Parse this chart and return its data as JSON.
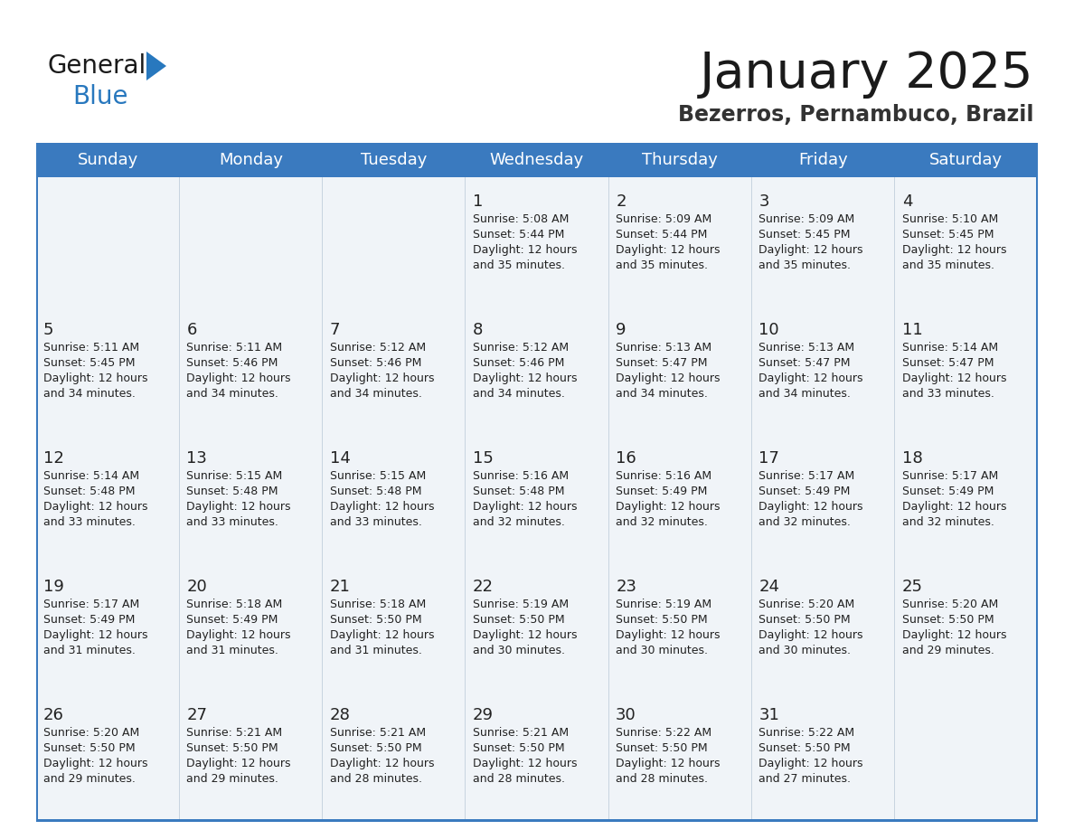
{
  "title": "January 2025",
  "subtitle": "Bezerros, Pernambuco, Brazil",
  "days_of_week": [
    "Sunday",
    "Monday",
    "Tuesday",
    "Wednesday",
    "Thursday",
    "Friday",
    "Saturday"
  ],
  "header_bg": "#3a7abf",
  "header_text": "#ffffff",
  "cell_bg": "#f0f4f8",
  "separator_color": "#3a7abf",
  "text_color": "#222222",
  "title_color": "#1a1a1a",
  "subtitle_color": "#333333",
  "logo_black": "#1a1a1a",
  "logo_blue": "#2878be",
  "calendar": [
    [
      {
        "day": null,
        "text": ""
      },
      {
        "day": null,
        "text": ""
      },
      {
        "day": null,
        "text": ""
      },
      {
        "day": 1,
        "sunrise": "5:08 AM",
        "sunset": "5:44 PM",
        "daylight": "12 hours",
        "minutes": "35 minutes."
      },
      {
        "day": 2,
        "sunrise": "5:09 AM",
        "sunset": "5:44 PM",
        "daylight": "12 hours",
        "minutes": "35 minutes."
      },
      {
        "day": 3,
        "sunrise": "5:09 AM",
        "sunset": "5:45 PM",
        "daylight": "12 hours",
        "minutes": "35 minutes."
      },
      {
        "day": 4,
        "sunrise": "5:10 AM",
        "sunset": "5:45 PM",
        "daylight": "12 hours",
        "minutes": "35 minutes."
      }
    ],
    [
      {
        "day": 5,
        "sunrise": "5:11 AM",
        "sunset": "5:45 PM",
        "daylight": "12 hours",
        "minutes": "34 minutes."
      },
      {
        "day": 6,
        "sunrise": "5:11 AM",
        "sunset": "5:46 PM",
        "daylight": "12 hours",
        "minutes": "34 minutes."
      },
      {
        "day": 7,
        "sunrise": "5:12 AM",
        "sunset": "5:46 PM",
        "daylight": "12 hours",
        "minutes": "34 minutes."
      },
      {
        "day": 8,
        "sunrise": "5:12 AM",
        "sunset": "5:46 PM",
        "daylight": "12 hours",
        "minutes": "34 minutes."
      },
      {
        "day": 9,
        "sunrise": "5:13 AM",
        "sunset": "5:47 PM",
        "daylight": "12 hours",
        "minutes": "34 minutes."
      },
      {
        "day": 10,
        "sunrise": "5:13 AM",
        "sunset": "5:47 PM",
        "daylight": "12 hours",
        "minutes": "34 minutes."
      },
      {
        "day": 11,
        "sunrise": "5:14 AM",
        "sunset": "5:47 PM",
        "daylight": "12 hours",
        "minutes": "33 minutes."
      }
    ],
    [
      {
        "day": 12,
        "sunrise": "5:14 AM",
        "sunset": "5:48 PM",
        "daylight": "12 hours",
        "minutes": "33 minutes."
      },
      {
        "day": 13,
        "sunrise": "5:15 AM",
        "sunset": "5:48 PM",
        "daylight": "12 hours",
        "minutes": "33 minutes."
      },
      {
        "day": 14,
        "sunrise": "5:15 AM",
        "sunset": "5:48 PM",
        "daylight": "12 hours",
        "minutes": "33 minutes."
      },
      {
        "day": 15,
        "sunrise": "5:16 AM",
        "sunset": "5:48 PM",
        "daylight": "12 hours",
        "minutes": "32 minutes."
      },
      {
        "day": 16,
        "sunrise": "5:16 AM",
        "sunset": "5:49 PM",
        "daylight": "12 hours",
        "minutes": "32 minutes."
      },
      {
        "day": 17,
        "sunrise": "5:17 AM",
        "sunset": "5:49 PM",
        "daylight": "12 hours",
        "minutes": "32 minutes."
      },
      {
        "day": 18,
        "sunrise": "5:17 AM",
        "sunset": "5:49 PM",
        "daylight": "12 hours",
        "minutes": "32 minutes."
      }
    ],
    [
      {
        "day": 19,
        "sunrise": "5:17 AM",
        "sunset": "5:49 PM",
        "daylight": "12 hours",
        "minutes": "31 minutes."
      },
      {
        "day": 20,
        "sunrise": "5:18 AM",
        "sunset": "5:49 PM",
        "daylight": "12 hours",
        "minutes": "31 minutes."
      },
      {
        "day": 21,
        "sunrise": "5:18 AM",
        "sunset": "5:50 PM",
        "daylight": "12 hours",
        "minutes": "31 minutes."
      },
      {
        "day": 22,
        "sunrise": "5:19 AM",
        "sunset": "5:50 PM",
        "daylight": "12 hours",
        "minutes": "30 minutes."
      },
      {
        "day": 23,
        "sunrise": "5:19 AM",
        "sunset": "5:50 PM",
        "daylight": "12 hours",
        "minutes": "30 minutes."
      },
      {
        "day": 24,
        "sunrise": "5:20 AM",
        "sunset": "5:50 PM",
        "daylight": "12 hours",
        "minutes": "30 minutes."
      },
      {
        "day": 25,
        "sunrise": "5:20 AM",
        "sunset": "5:50 PM",
        "daylight": "12 hours",
        "minutes": "29 minutes."
      }
    ],
    [
      {
        "day": 26,
        "sunrise": "5:20 AM",
        "sunset": "5:50 PM",
        "daylight": "12 hours",
        "minutes": "29 minutes."
      },
      {
        "day": 27,
        "sunrise": "5:21 AM",
        "sunset": "5:50 PM",
        "daylight": "12 hours",
        "minutes": "29 minutes."
      },
      {
        "day": 28,
        "sunrise": "5:21 AM",
        "sunset": "5:50 PM",
        "daylight": "12 hours",
        "minutes": "28 minutes."
      },
      {
        "day": 29,
        "sunrise": "5:21 AM",
        "sunset": "5:50 PM",
        "daylight": "12 hours",
        "minutes": "28 minutes."
      },
      {
        "day": 30,
        "sunrise": "5:22 AM",
        "sunset": "5:50 PM",
        "daylight": "12 hours",
        "minutes": "28 minutes."
      },
      {
        "day": 31,
        "sunrise": "5:22 AM",
        "sunset": "5:50 PM",
        "daylight": "12 hours",
        "minutes": "27 minutes."
      },
      {
        "day": null,
        "text": ""
      }
    ]
  ]
}
